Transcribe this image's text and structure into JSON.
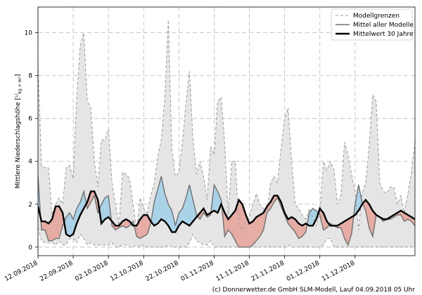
{
  "chart_data": {
    "type": "line",
    "ylabel": "Mittlere Niederschlagshöhe [",
    "ylabel_unit_num": "L",
    "ylabel_unit_den": "kg × m²",
    "ylabel_suffix": "]",
    "ylim": [
      -0.4,
      11.2
    ],
    "yticks": [
      0,
      2,
      4,
      6,
      8,
      10
    ],
    "xlim": [
      0,
      107
    ],
    "xticks": [
      {
        "x": 0,
        "label": "12.09.2018"
      },
      {
        "x": 10,
        "label": "22.09.2018"
      },
      {
        "x": 20,
        "label": "02.10.2018"
      },
      {
        "x": 30,
        "label": "12.10.2018"
      },
      {
        "x": 40,
        "label": "22.10.2018"
      },
      {
        "x": 50,
        "label": "01.11.2018"
      },
      {
        "x": 60,
        "label": "11.11.2018"
      },
      {
        "x": 70,
        "label": "21.11.2018"
      },
      {
        "x": 80,
        "label": "01.12.2018"
      },
      {
        "x": 90,
        "label": "11.12.2018"
      }
    ],
    "grid": true,
    "legend_position": "top-right",
    "legend": [
      {
        "name": "Modellgrenzen",
        "style": "dashed"
      },
      {
        "name": "Mittel aller Modelle",
        "style": "solid-gray"
      },
      {
        "name": "Mittelwert 30 Jahre",
        "style": "solid-black"
      }
    ],
    "x": [
      0,
      1,
      2,
      3,
      4,
      5,
      6,
      7,
      8,
      9,
      10,
      11,
      12,
      13,
      14,
      15,
      16,
      17,
      18,
      19,
      20,
      21,
      22,
      23,
      24,
      25,
      26,
      27,
      28,
      29,
      30,
      31,
      32,
      33,
      34,
      35,
      36,
      37,
      38,
      39,
      40,
      41,
      42,
      43,
      44,
      45,
      46,
      47,
      48,
      49,
      50,
      51,
      52,
      53,
      54,
      55,
      56,
      57,
      58,
      59,
      60,
      61,
      62,
      63,
      64,
      65,
      66,
      67,
      68,
      69,
      70,
      71,
      72,
      73,
      74,
      75,
      76,
      77,
      78,
      79,
      80,
      81,
      82,
      83,
      84,
      85,
      86,
      87,
      88,
      89,
      90,
      91,
      92,
      93,
      94,
      95,
      96,
      97,
      98,
      99,
      100,
      101,
      102,
      103,
      104,
      105,
      106,
      107
    ],
    "series": [
      {
        "name": "Modellgrenzen",
        "role": "max",
        "values": [
          8.5,
          3.8,
          3.7,
          3.7,
          1.5,
          2.0,
          2.3,
          2.0,
          3.7,
          3.8,
          3.2,
          7.0,
          9.4,
          10.0,
          6.8,
          6.5,
          4.0,
          2.8,
          5.0,
          5.0,
          5.5,
          3.0,
          2.0,
          1.0,
          3.5,
          3.4,
          3.2,
          2.0,
          0.8,
          2.3,
          1.8,
          1.6,
          2.4,
          3.0,
          4.2,
          5.0,
          7.0,
          10.6,
          4.5,
          3.3,
          3.5,
          4.9,
          6.7,
          8.2,
          5.0,
          3.4,
          4.0,
          3.3,
          2.2,
          4.7,
          4.3,
          6.8,
          7.0,
          4.8,
          1.5,
          4.0,
          4.0,
          1.0,
          0.8,
          1.2,
          1.4,
          2.0,
          2.5,
          2.0,
          1.8,
          1.6,
          3.0,
          3.3,
          3.0,
          4.6,
          6.0,
          6.5,
          4.0,
          2.0,
          1.8,
          1.5,
          1.3,
          1.8,
          1.4,
          1.0,
          1.6,
          4.0,
          3.6,
          4.0,
          3.6,
          2.0,
          2.4,
          4.9,
          4.3,
          3.4,
          2.6,
          0.8,
          2.5,
          3.0,
          4.7,
          7.1,
          6.8,
          3.0,
          2.6,
          2.5,
          2.8,
          2.8,
          2.0,
          2.4,
          1.6,
          2.5,
          3.5,
          4.9
        ]
      },
      {
        "name": "Modellgrenzen",
        "role": "min",
        "values": [
          0.9,
          0.3,
          0.2,
          0.2,
          0.2,
          0.1,
          0.3,
          0.1,
          0.1,
          0.4,
          0.4,
          0.2,
          0.6,
          0.4,
          0.1,
          0.2,
          0.1,
          0.1,
          0.1,
          0.1,
          0.1,
          0.2,
          0.0,
          0.0,
          0.1,
          0.1,
          0.0,
          0.0,
          0.1,
          0.0,
          0.1,
          0.0,
          0.0,
          0.0,
          0.0,
          0.0,
          0.0,
          0.1,
          0.0,
          0.0,
          0.0,
          0.0,
          0.0,
          0.2,
          0.6,
          0.3,
          0.2,
          0.1,
          0.1,
          0.3,
          0.0,
          0.0,
          0.0,
          0.0,
          0.0,
          0.0,
          0.0,
          0.0,
          0.0,
          0.0,
          0.0,
          0.0,
          0.0,
          0.0,
          0.0,
          0.0,
          0.0,
          0.0,
          0.0,
          0.0,
          0.0,
          0.1,
          0.0,
          0.0,
          0.0,
          0.0,
          0.0,
          0.0,
          0.0,
          0.0,
          0.0,
          0.1,
          0.4,
          0.4,
          0.0,
          0.0,
          0.0,
          0.0,
          0.0,
          0.0,
          0.0,
          0.0,
          0.0,
          0.0,
          0.0,
          0.0,
          0.0,
          0.0,
          0.0,
          0.0,
          0.0,
          0.0,
          0.0,
          0.0,
          0.0,
          0.0,
          0.0,
          0.0
        ]
      },
      {
        "name": "Mittel aller Modelle",
        "values": [
          3.3,
          0.8,
          0.8,
          0.3,
          0.3,
          0.4,
          0.4,
          1.0,
          1.4,
          1.6,
          1.3,
          1.8,
          2.1,
          2.6,
          1.8,
          2.1,
          2.4,
          1.6,
          2.0,
          2.3,
          2.4,
          1.0,
          0.8,
          0.9,
          1.0,
          0.9,
          1.0,
          1.2,
          0.5,
          0.4,
          0.5,
          0.6,
          1.1,
          2.1,
          2.7,
          3.3,
          2.5,
          2.0,
          1.7,
          1.0,
          1.6,
          1.8,
          2.3,
          2.9,
          2.2,
          1.5,
          1.3,
          1.6,
          1.4,
          1.5,
          2.9,
          2.6,
          2.2,
          0.5,
          0.8,
          0.6,
          0.3,
          0.0,
          0.0,
          0.0,
          0.0,
          0.1,
          0.3,
          0.5,
          0.8,
          1.6,
          1.8,
          2.1,
          2.3,
          1.9,
          1.5,
          1.1,
          0.9,
          0.7,
          0.4,
          0.5,
          0.7,
          1.6,
          1.8,
          1.7,
          1.5,
          0.8,
          0.9,
          1.1,
          1.0,
          0.9,
          0.9,
          0.4,
          0.1,
          0.6,
          2.0,
          2.9,
          2.1,
          1.7,
          0.9,
          0.5,
          1.5,
          1.4,
          1.2,
          1.3,
          1.3,
          1.4,
          1.5,
          1.5,
          1.2,
          1.3,
          1.2,
          1.0
        ]
      },
      {
        "name": "Mittelwert 30 Jahre",
        "values": [
          1.9,
          1.2,
          1.2,
          1.1,
          1.3,
          1.9,
          1.9,
          1.6,
          0.6,
          0.5,
          0.6,
          1.1,
          1.5,
          1.8,
          2.1,
          2.6,
          2.6,
          2.2,
          1.1,
          1.3,
          1.4,
          1.2,
          1.0,
          1.0,
          1.2,
          1.3,
          1.2,
          1.0,
          1.0,
          1.3,
          1.5,
          1.5,
          1.2,
          1.0,
          1.1,
          1.3,
          1.2,
          1.0,
          0.7,
          0.7,
          1.0,
          1.2,
          1.1,
          1.0,
          1.2,
          1.4,
          1.6,
          1.8,
          1.5,
          1.6,
          1.7,
          1.6,
          2.0,
          1.6,
          1.3,
          1.5,
          1.7,
          2.2,
          2.0,
          1.5,
          1.1,
          1.2,
          1.4,
          1.5,
          1.6,
          1.9,
          2.1,
          2.4,
          2.4,
          2.1,
          1.6,
          1.3,
          1.4,
          1.3,
          1.1,
          1.0,
          1.1,
          1.0,
          1.0,
          1.3,
          1.8,
          1.6,
          1.2,
          1.0,
          1.0,
          1.0,
          1.1,
          1.2,
          1.3,
          1.4,
          1.5,
          1.7,
          2.0,
          2.2,
          2.0,
          1.7,
          1.5,
          1.4,
          1.3,
          1.3,
          1.4,
          1.5,
          1.6,
          1.7,
          1.6,
          1.5,
          1.4,
          1.3
        ]
      }
    ]
  },
  "credit": "(c) Donnerwetter.de GmbH SLM-Modell, Lauf 04.09.2018 05 Uhr",
  "colors": {
    "envelope_fill": "#e5e5e5",
    "above_fill": "#a8d2e8",
    "below_fill": "#e6aca3",
    "grid": "#b8b8b8",
    "mean_line": "#707070",
    "climate_line": "#000000",
    "bounds_line": "#9a9a9a"
  }
}
